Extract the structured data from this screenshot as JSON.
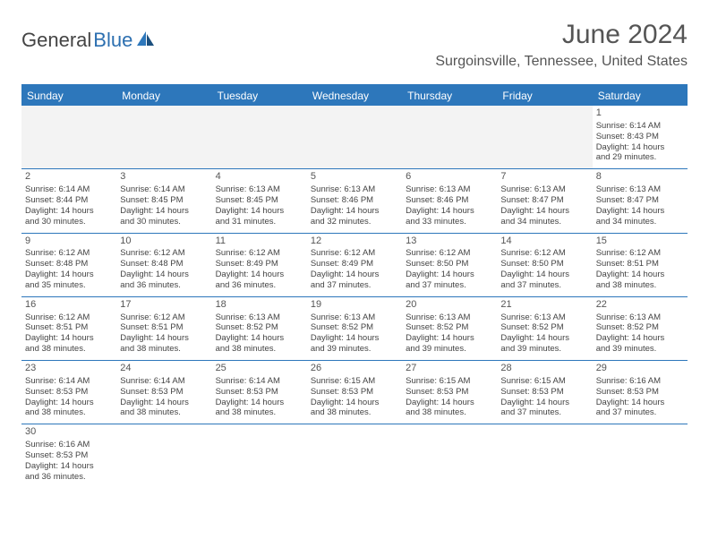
{
  "logo": {
    "text_general": "General",
    "text_blue": "Blue",
    "sail_color": "#2d77bb",
    "sail_color2": "#1b4f7e"
  },
  "header": {
    "month_title": "June 2024",
    "location": "Surgoinsville, Tennessee, United States"
  },
  "calendar": {
    "background": "#ffffff",
    "header_bg": "#2d77bb",
    "header_text": "#ffffff",
    "border_color": "#2d77bb",
    "empty_bg": "#f3f3f3",
    "text_color": "#444444",
    "day_fontsize": 9.5,
    "header_fontsize": 12,
    "days_of_week": [
      "Sunday",
      "Monday",
      "Tuesday",
      "Wednesday",
      "Thursday",
      "Friday",
      "Saturday"
    ],
    "weeks": [
      [
        null,
        null,
        null,
        null,
        null,
        null,
        {
          "n": "1",
          "sunrise": "Sunrise: 6:14 AM",
          "sunset": "Sunset: 8:43 PM",
          "d1": "Daylight: 14 hours",
          "d2": "and 29 minutes."
        }
      ],
      [
        {
          "n": "2",
          "sunrise": "Sunrise: 6:14 AM",
          "sunset": "Sunset: 8:44 PM",
          "d1": "Daylight: 14 hours",
          "d2": "and 30 minutes."
        },
        {
          "n": "3",
          "sunrise": "Sunrise: 6:14 AM",
          "sunset": "Sunset: 8:45 PM",
          "d1": "Daylight: 14 hours",
          "d2": "and 30 minutes."
        },
        {
          "n": "4",
          "sunrise": "Sunrise: 6:13 AM",
          "sunset": "Sunset: 8:45 PM",
          "d1": "Daylight: 14 hours",
          "d2": "and 31 minutes."
        },
        {
          "n": "5",
          "sunrise": "Sunrise: 6:13 AM",
          "sunset": "Sunset: 8:46 PM",
          "d1": "Daylight: 14 hours",
          "d2": "and 32 minutes."
        },
        {
          "n": "6",
          "sunrise": "Sunrise: 6:13 AM",
          "sunset": "Sunset: 8:46 PM",
          "d1": "Daylight: 14 hours",
          "d2": "and 33 minutes."
        },
        {
          "n": "7",
          "sunrise": "Sunrise: 6:13 AM",
          "sunset": "Sunset: 8:47 PM",
          "d1": "Daylight: 14 hours",
          "d2": "and 34 minutes."
        },
        {
          "n": "8",
          "sunrise": "Sunrise: 6:13 AM",
          "sunset": "Sunset: 8:47 PM",
          "d1": "Daylight: 14 hours",
          "d2": "and 34 minutes."
        }
      ],
      [
        {
          "n": "9",
          "sunrise": "Sunrise: 6:12 AM",
          "sunset": "Sunset: 8:48 PM",
          "d1": "Daylight: 14 hours",
          "d2": "and 35 minutes."
        },
        {
          "n": "10",
          "sunrise": "Sunrise: 6:12 AM",
          "sunset": "Sunset: 8:48 PM",
          "d1": "Daylight: 14 hours",
          "d2": "and 36 minutes."
        },
        {
          "n": "11",
          "sunrise": "Sunrise: 6:12 AM",
          "sunset": "Sunset: 8:49 PM",
          "d1": "Daylight: 14 hours",
          "d2": "and 36 minutes."
        },
        {
          "n": "12",
          "sunrise": "Sunrise: 6:12 AM",
          "sunset": "Sunset: 8:49 PM",
          "d1": "Daylight: 14 hours",
          "d2": "and 37 minutes."
        },
        {
          "n": "13",
          "sunrise": "Sunrise: 6:12 AM",
          "sunset": "Sunset: 8:50 PM",
          "d1": "Daylight: 14 hours",
          "d2": "and 37 minutes."
        },
        {
          "n": "14",
          "sunrise": "Sunrise: 6:12 AM",
          "sunset": "Sunset: 8:50 PM",
          "d1": "Daylight: 14 hours",
          "d2": "and 37 minutes."
        },
        {
          "n": "15",
          "sunrise": "Sunrise: 6:12 AM",
          "sunset": "Sunset: 8:51 PM",
          "d1": "Daylight: 14 hours",
          "d2": "and 38 minutes."
        }
      ],
      [
        {
          "n": "16",
          "sunrise": "Sunrise: 6:12 AM",
          "sunset": "Sunset: 8:51 PM",
          "d1": "Daylight: 14 hours",
          "d2": "and 38 minutes."
        },
        {
          "n": "17",
          "sunrise": "Sunrise: 6:12 AM",
          "sunset": "Sunset: 8:51 PM",
          "d1": "Daylight: 14 hours",
          "d2": "and 38 minutes."
        },
        {
          "n": "18",
          "sunrise": "Sunrise: 6:13 AM",
          "sunset": "Sunset: 8:52 PM",
          "d1": "Daylight: 14 hours",
          "d2": "and 38 minutes."
        },
        {
          "n": "19",
          "sunrise": "Sunrise: 6:13 AM",
          "sunset": "Sunset: 8:52 PM",
          "d1": "Daylight: 14 hours",
          "d2": "and 39 minutes."
        },
        {
          "n": "20",
          "sunrise": "Sunrise: 6:13 AM",
          "sunset": "Sunset: 8:52 PM",
          "d1": "Daylight: 14 hours",
          "d2": "and 39 minutes."
        },
        {
          "n": "21",
          "sunrise": "Sunrise: 6:13 AM",
          "sunset": "Sunset: 8:52 PM",
          "d1": "Daylight: 14 hours",
          "d2": "and 39 minutes."
        },
        {
          "n": "22",
          "sunrise": "Sunrise: 6:13 AM",
          "sunset": "Sunset: 8:52 PM",
          "d1": "Daylight: 14 hours",
          "d2": "and 39 minutes."
        }
      ],
      [
        {
          "n": "23",
          "sunrise": "Sunrise: 6:14 AM",
          "sunset": "Sunset: 8:53 PM",
          "d1": "Daylight: 14 hours",
          "d2": "and 38 minutes."
        },
        {
          "n": "24",
          "sunrise": "Sunrise: 6:14 AM",
          "sunset": "Sunset: 8:53 PM",
          "d1": "Daylight: 14 hours",
          "d2": "and 38 minutes."
        },
        {
          "n": "25",
          "sunrise": "Sunrise: 6:14 AM",
          "sunset": "Sunset: 8:53 PM",
          "d1": "Daylight: 14 hours",
          "d2": "and 38 minutes."
        },
        {
          "n": "26",
          "sunrise": "Sunrise: 6:15 AM",
          "sunset": "Sunset: 8:53 PM",
          "d1": "Daylight: 14 hours",
          "d2": "and 38 minutes."
        },
        {
          "n": "27",
          "sunrise": "Sunrise: 6:15 AM",
          "sunset": "Sunset: 8:53 PM",
          "d1": "Daylight: 14 hours",
          "d2": "and 38 minutes."
        },
        {
          "n": "28",
          "sunrise": "Sunrise: 6:15 AM",
          "sunset": "Sunset: 8:53 PM",
          "d1": "Daylight: 14 hours",
          "d2": "and 37 minutes."
        },
        {
          "n": "29",
          "sunrise": "Sunrise: 6:16 AM",
          "sunset": "Sunset: 8:53 PM",
          "d1": "Daylight: 14 hours",
          "d2": "and 37 minutes."
        }
      ],
      [
        {
          "n": "30",
          "sunrise": "Sunrise: 6:16 AM",
          "sunset": "Sunset: 8:53 PM",
          "d1": "Daylight: 14 hours",
          "d2": "and 36 minutes."
        },
        null,
        null,
        null,
        null,
        null,
        null
      ]
    ]
  }
}
